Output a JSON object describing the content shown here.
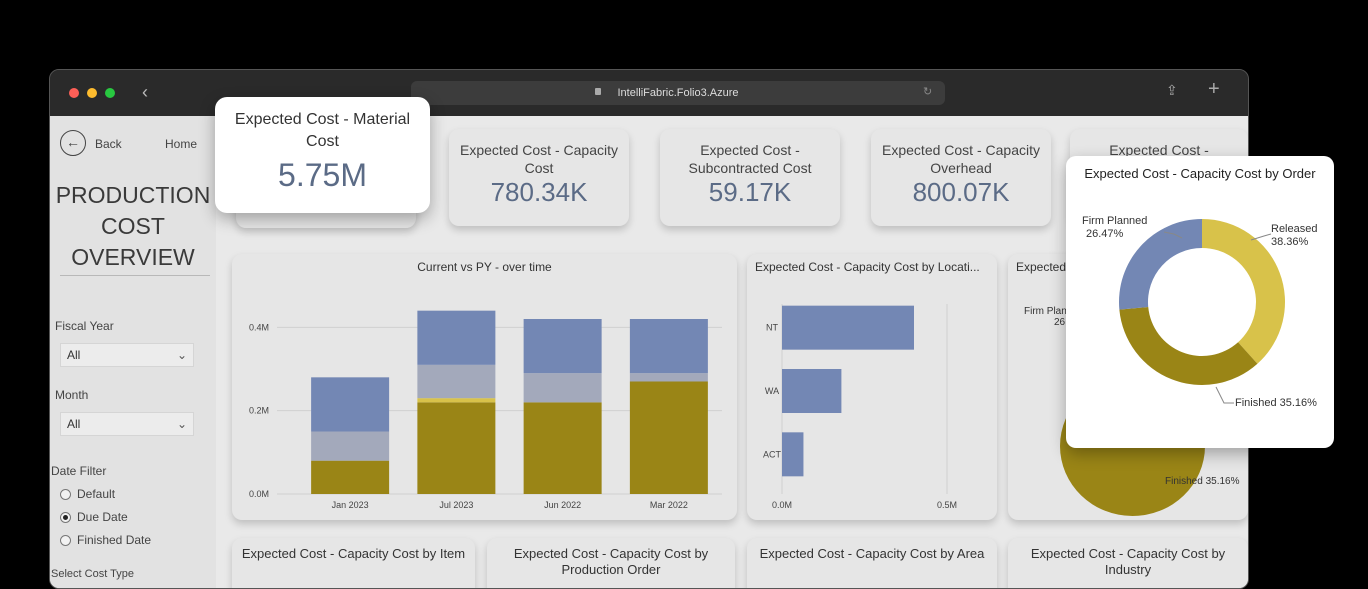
{
  "browser": {
    "url": "IntelliFabric.Folio3.Azure"
  },
  "sidebar": {
    "back_label": "Back",
    "home_label": "Home",
    "title_line1": "PRODUCTION",
    "title_line2": "COST",
    "title_line3": "OVERVIEW",
    "fiscal_year_label": "Fiscal Year",
    "fiscal_year_value": "All",
    "month_label": "Month",
    "month_value": "All",
    "date_filter_label": "Date Filter",
    "date_options": [
      "Default",
      "Due Date",
      "Finished Date"
    ],
    "date_selected": "Due Date",
    "cost_type_label": "Select Cost Type"
  },
  "kpis": [
    {
      "title_line1": "Expected Cost - Material",
      "title_line2": "Cost",
      "value": "5.75M"
    },
    {
      "title_line1": "Expected Cost - Capacity",
      "title_line2": "Cost",
      "value": "780.34K"
    },
    {
      "title_line1": "Expected Cost -",
      "title_line2": "Subcontracted Cost",
      "value": "59.17K"
    },
    {
      "title_line1": "Expected Cost - Capacity",
      "title_line2": "Overhead",
      "value": "800.07K"
    },
    {
      "title_line1": "Expected Cost -",
      "title_line2": "",
      "value": ""
    }
  ],
  "bottom_cards": [
    {
      "line1": "Expected Cost - Capacity Cost by Item",
      "line2": ""
    },
    {
      "line1": "Expected Cost - Capacity Cost by",
      "line2": "Production Order"
    },
    {
      "line1": "Expected Cost - Capacity Cost by Area",
      "line2": ""
    },
    {
      "line1": "Expected Cost - Capacity Cost by",
      "line2": "Industry"
    }
  ],
  "colors": {
    "blue": "#7387b4",
    "gray": "#a3a9bb",
    "gold": "#9a8516",
    "yellow": "#d8c24a",
    "kpi_value": "#5b6b86"
  },
  "chart_data": [
    {
      "type": "bar",
      "title": "Current vs PY - over time",
      "categories": [
        "Jan 2023",
        "Jul 2023",
        "Jun 2022",
        "Mar 2022"
      ],
      "stacked": true,
      "series": [
        {
          "values": [
            0.08,
            0.22,
            0.22,
            0.27
          ],
          "color": "#9a8516"
        },
        {
          "values": [
            0.0,
            0.01,
            0.0,
            0.0
          ],
          "color": "#d8c24a"
        },
        {
          "values": [
            0.07,
            0.08,
            0.07,
            0.02
          ],
          "color": "#a3a9bb"
        },
        {
          "values": [
            0.13,
            0.13,
            0.13,
            0.13
          ],
          "color": "#7387b4"
        }
      ],
      "y_ticks": [
        "0.0M",
        "0.2M",
        "0.4M"
      ],
      "ylim": [
        0,
        0.48
      ]
    },
    {
      "type": "bar",
      "orientation": "horizontal",
      "title": "Expected Cost - Capacity Cost by Locati...",
      "categories": [
        "NT",
        "WA",
        "ACT"
      ],
      "values": [
        0.4,
        0.18,
        0.065
      ],
      "x_ticks": [
        "0.0M",
        "0.5M"
      ],
      "xlim": [
        0,
        0.5
      ]
    },
    {
      "type": "pie",
      "donut": true,
      "title": "Expected Cost - Capacity Cost by Order",
      "slices": [
        {
          "label": "Released",
          "pct": "38.36%",
          "value": 38.36,
          "color": "#d8c24a"
        },
        {
          "label": "Finished",
          "pct": "35.16%",
          "value": 35.16,
          "color": "#9a8516"
        },
        {
          "label": "Firm Planned",
          "pct": "26.47%",
          "value": 26.47,
          "color": "#7387b4"
        }
      ]
    }
  ],
  "background_pie": {
    "title": "Expected",
    "label_left": "Firm Plan",
    "label_left_pct": "26.",
    "finished_label": "Finished 35.16%"
  }
}
